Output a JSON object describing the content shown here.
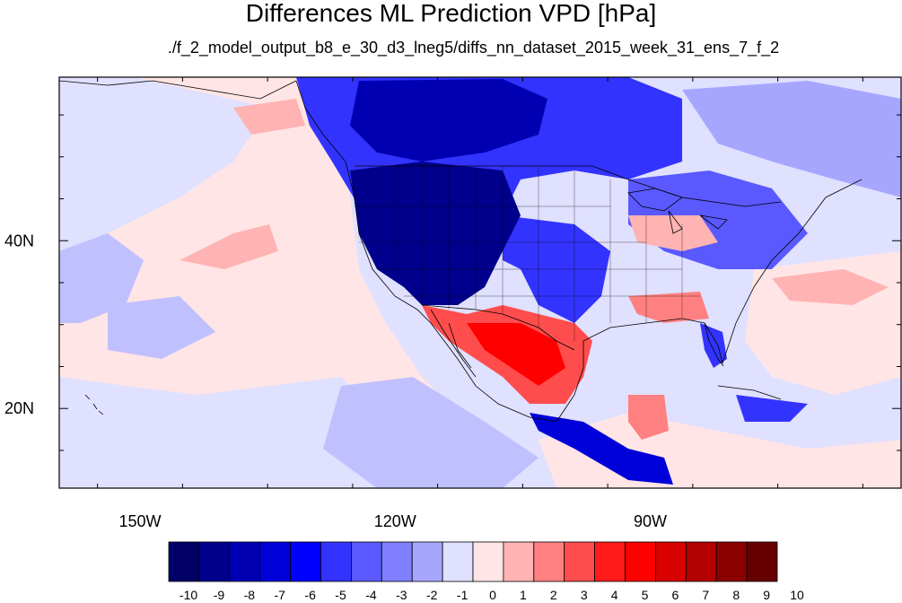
{
  "title": "Differences ML Prediction VPD [hPa]",
  "subtitle": "./f_2_model_output_b8_e_30_d3_lneg5/diffs_nn_dataset_2015_week_31_ens_7_f_2",
  "axes": {
    "x_ticks": [
      {
        "label": "150W",
        "lon": -150
      },
      {
        "label": "120W",
        "lon": -120
      },
      {
        "label": "90W",
        "lon": -90
      }
    ],
    "y_ticks": [
      {
        "label": "40N",
        "lat": 40
      },
      {
        "label": "20N",
        "lat": 20
      }
    ],
    "lon_range": [
      -159.5,
      -60.5
    ],
    "lat_range": [
      10.5,
      59.5
    ]
  },
  "colorbar": {
    "labels": [
      "-10",
      "-9",
      "-8",
      "-7",
      "-6",
      "-5",
      "-4",
      "-3",
      "-2",
      "-1",
      "0",
      "1",
      "2",
      "3",
      "4",
      "5",
      "6",
      "7",
      "8",
      "9",
      "10"
    ],
    "colors": [
      "#000066",
      "#00008c",
      "#0000b2",
      "#0000d9",
      "#0000ff",
      "#3333ff",
      "#5959ff",
      "#8080ff",
      "#a6a6ff",
      "#e0e0ff",
      "#ffe5e5",
      "#ffb3b3",
      "#ff8080",
      "#ff4d4d",
      "#ff1a1a",
      "#ff0000",
      "#d90000",
      "#b30000",
      "#8c0000",
      "#660000"
    ]
  }
}
